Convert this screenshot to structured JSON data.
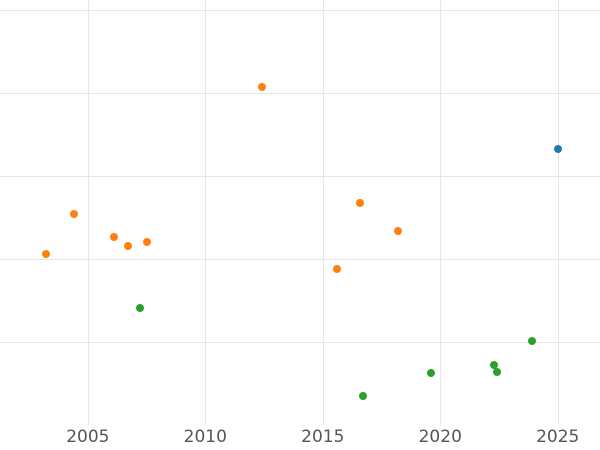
{
  "chart_data": {
    "type": "scatter",
    "title": "",
    "xlabel": "",
    "ylabel": "",
    "x_ticks": [
      2005,
      2010,
      2015,
      2020,
      2025
    ],
    "x_tick_labels": [
      "2005",
      "2010",
      "2015",
      "2020",
      "2025"
    ],
    "y_gridlines": [
      0,
      1,
      2,
      3,
      4,
      5
    ],
    "xlim": [
      2001.26,
      2026.8
    ],
    "ylim": [
      0,
      5.12
    ],
    "grid": true,
    "legend_position": "none",
    "series": [
      {
        "name": "orange",
        "color": "#ff7f0e",
        "points": [
          {
            "x": 2003.2,
            "y": 2.06
          },
          {
            "x": 2004.4,
            "y": 2.54
          },
          {
            "x": 2006.1,
            "y": 2.26
          },
          {
            "x": 2006.7,
            "y": 2.16
          },
          {
            "x": 2007.5,
            "y": 2.2
          },
          {
            "x": 2012.4,
            "y": 4.07
          },
          {
            "x": 2015.6,
            "y": 1.88
          },
          {
            "x": 2016.6,
            "y": 2.68
          },
          {
            "x": 2018.2,
            "y": 2.34
          }
        ]
      },
      {
        "name": "green",
        "color": "#2ca02c",
        "points": [
          {
            "x": 2007.2,
            "y": 1.41
          },
          {
            "x": 2016.7,
            "y": 0.35
          },
          {
            "x": 2019.6,
            "y": 0.63
          },
          {
            "x": 2022.3,
            "y": 0.72
          },
          {
            "x": 2022.4,
            "y": 0.64
          },
          {
            "x": 2023.9,
            "y": 1.01
          }
        ]
      },
      {
        "name": "blue",
        "color": "#1f77b4",
        "points": [
          {
            "x": 2025.0,
            "y": 3.33
          }
        ]
      }
    ]
  },
  "style": {
    "background": "#ffffff",
    "grid_color": "#e6e6e6",
    "tick_label_color": "#555555"
  }
}
